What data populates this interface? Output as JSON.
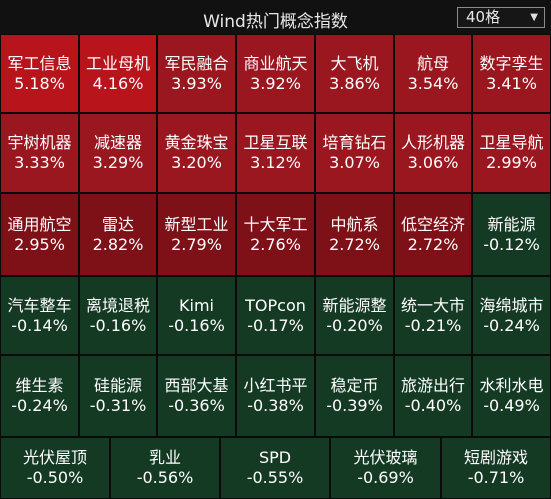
{
  "header": {
    "title": "Wind热门概念指数",
    "count_selector": "40格",
    "count_arrow": "▼"
  },
  "colors": {
    "red_top": "#b8141c",
    "red": "#9a1720",
    "red_dark": "#7e1018",
    "green": "#153a24"
  },
  "tiles": [
    {
      "name": "军工信息",
      "change": "5.18%"
    },
    {
      "name": "工业母机",
      "change": "4.16%"
    },
    {
      "name": "军民融合",
      "change": "3.93%"
    },
    {
      "name": "商业航天",
      "change": "3.92%"
    },
    {
      "name": "大飞机",
      "change": "3.86%"
    },
    {
      "name": "航母",
      "change": "3.54%"
    },
    {
      "name": "数字孪生",
      "change": "3.41%"
    },
    {
      "name": "宇树机器",
      "change": "3.33%"
    },
    {
      "name": "减速器",
      "change": "3.29%"
    },
    {
      "name": "黄金珠宝",
      "change": "3.20%"
    },
    {
      "name": "卫星互联",
      "change": "3.12%"
    },
    {
      "name": "培育钻石",
      "change": "3.07%"
    },
    {
      "name": "人形机器",
      "change": "3.06%"
    },
    {
      "name": "卫星导航",
      "change": "2.99%"
    },
    {
      "name": "通用航空",
      "change": "2.95%"
    },
    {
      "name": "雷达",
      "change": "2.82%"
    },
    {
      "name": "新型工业",
      "change": "2.79%"
    },
    {
      "name": "十大军工",
      "change": "2.76%"
    },
    {
      "name": "中航系",
      "change": "2.72%"
    },
    {
      "name": "低空经济",
      "change": "2.72%"
    },
    {
      "name": "新能源",
      "change": "-0.12%"
    },
    {
      "name": "汽车整车",
      "change": "-0.14%"
    },
    {
      "name": "离境退税",
      "change": "-0.16%"
    },
    {
      "name": "Kimi",
      "change": "-0.16%"
    },
    {
      "name": "TOPcon",
      "change": "-0.17%"
    },
    {
      "name": "新能源整",
      "change": "-0.20%"
    },
    {
      "name": "统一大市",
      "change": "-0.21%"
    },
    {
      "name": "海绵城市",
      "change": "-0.24%"
    },
    {
      "name": "维生素",
      "change": "-0.24%"
    },
    {
      "name": "硅能源",
      "change": "-0.31%"
    },
    {
      "name": "西部大基",
      "change": "-0.36%"
    },
    {
      "name": "小红书平",
      "change": "-0.38%"
    },
    {
      "name": "稳定币",
      "change": "-0.39%"
    },
    {
      "name": "旅游出行",
      "change": "-0.40%"
    },
    {
      "name": "水利水电",
      "change": "-0.49%"
    },
    {
      "name": "光伏屋顶",
      "change": "-0.50%"
    },
    {
      "name": "乳业",
      "change": "-0.56%"
    },
    {
      "name": "SPD",
      "change": "-0.55%"
    },
    {
      "name": "光伏玻璃",
      "change": "-0.69%"
    },
    {
      "name": "短剧游戏",
      "change": "-0.71%"
    }
  ]
}
